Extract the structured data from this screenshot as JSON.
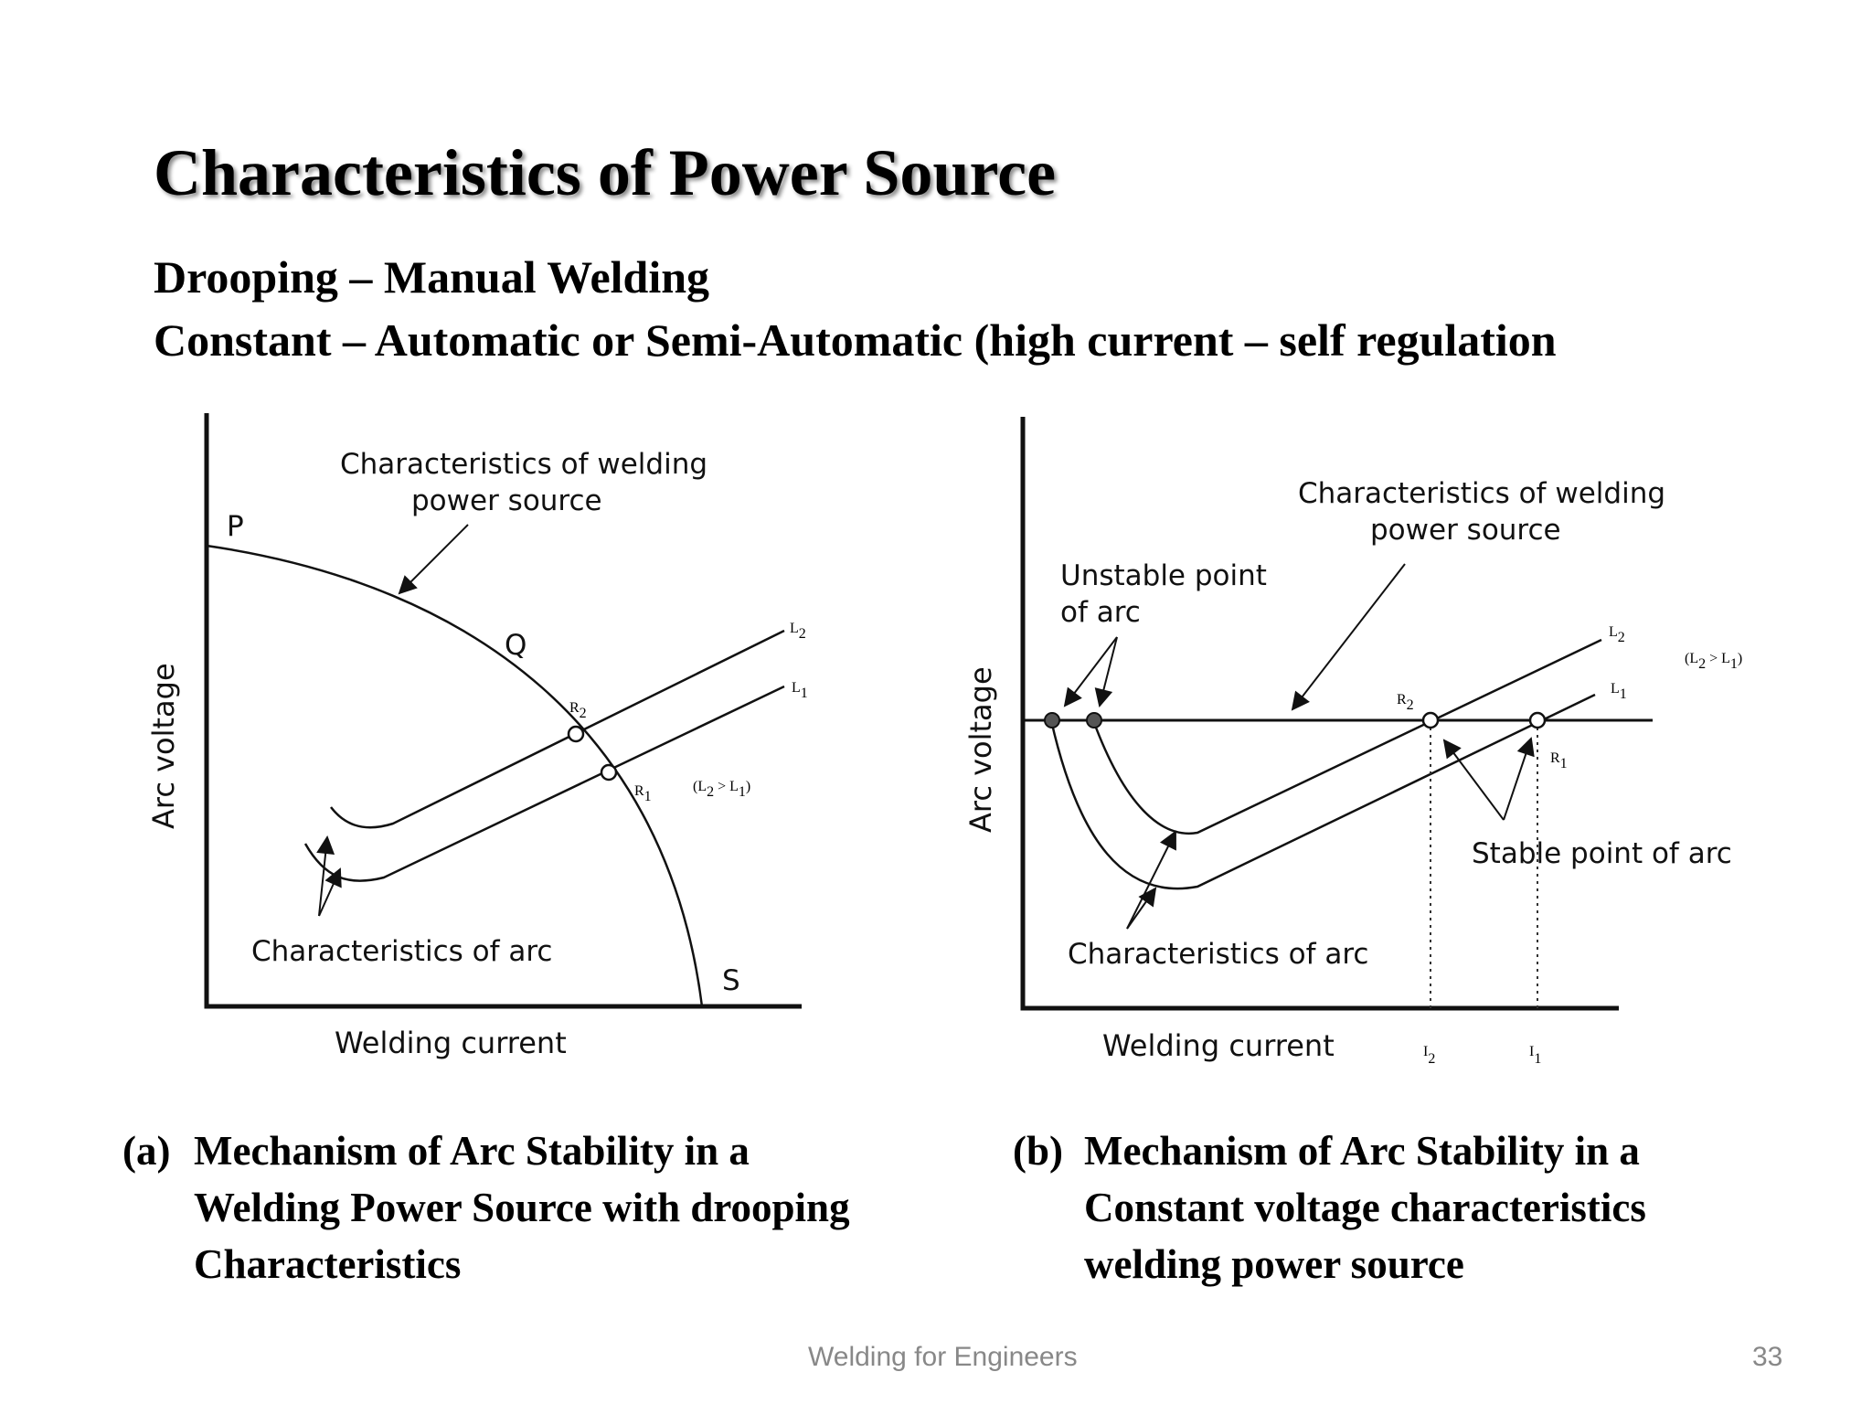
{
  "slide": {
    "title": "Characteristics of Power Source",
    "line1": "Drooping – Manual Welding",
    "line2": "Constant – Automatic or Semi-Automatic (high current – self regulation"
  },
  "diagram_a": {
    "ylabel": "Arc voltage",
    "xlabel": "Welding current",
    "power_source_label_1": "Characteristics of welding",
    "power_source_label_2": "power source",
    "arc_label": "Characteristics of arc",
    "point_p": "P",
    "point_q": "Q",
    "point_s": "S",
    "r2": "R",
    "r2_sub": "2",
    "r1": "R",
    "r1_sub": "1",
    "l2": "L",
    "l2_sub": "2",
    "l1": "L",
    "l1_sub": "1",
    "relation_open": "(L",
    "relation_sub_a": "2",
    "relation_mid": " > L",
    "relation_sub_b": "1",
    "relation_close": ")"
  },
  "diagram_b": {
    "ylabel": "Arc voltage",
    "xlabel": "Welding current",
    "power_source_label_1": "Characteristics of welding",
    "power_source_label_2": "power source",
    "unstable_label_1": "Unstable point",
    "unstable_label_2": "of arc",
    "stable_label": "Stable point of arc",
    "arc_label": "Characteristics of arc",
    "r2": "R",
    "r2_sub": "2",
    "r1": "R",
    "r1_sub": "1",
    "l2": "L",
    "l2_sub": "2",
    "l1": "L",
    "l1_sub": "1",
    "i2": "I",
    "i2_sub": "2",
    "i1": "I",
    "i1_sub": "1",
    "relation_open": "(L",
    "relation_sub_a": "2",
    "relation_mid": " > L",
    "relation_sub_b": "1",
    "relation_close": ")"
  },
  "captions": {
    "a_label": "(a)",
    "a_line1": "Mechanism of Arc Stability in a",
    "a_line2": "Welding Power Source with drooping",
    "a_line3": "Characteristics",
    "b_label": "(b)",
    "b_line1": "Mechanism of Arc Stability in a",
    "b_line2": "Constant voltage characteristics",
    "b_line3": "welding power source"
  },
  "footer": {
    "text": "Welding for Engineers",
    "page": "33"
  }
}
